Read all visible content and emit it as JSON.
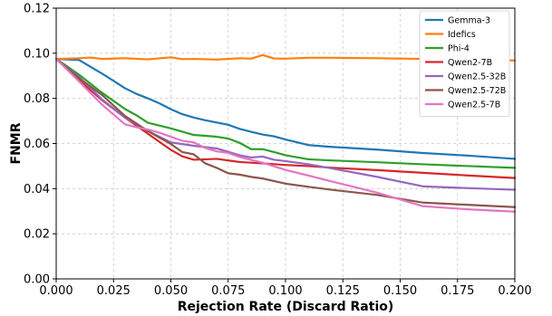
{
  "chart_data": {
    "type": "line",
    "title": "",
    "xlabel": "Rejection Rate (Discard Ratio)",
    "ylabel": "FNMR",
    "xlim": [
      0.0,
      0.2
    ],
    "ylim": [
      0.0,
      0.12
    ],
    "xticks": [
      "0.000",
      "0.025",
      "0.050",
      "0.075",
      "0.100",
      "0.125",
      "0.150",
      "0.175",
      "0.200"
    ],
    "yticks": [
      "0.00",
      "0.02",
      "0.04",
      "0.06",
      "0.08",
      "0.10",
      "0.12"
    ],
    "grid": true,
    "legend_position": "top-right",
    "series": [
      {
        "name": "Gemma-3",
        "color": "#1f77b4",
        "x": [
          0.0,
          0.01,
          0.02,
          0.03,
          0.035,
          0.04,
          0.045,
          0.05,
          0.055,
          0.06,
          0.065,
          0.07,
          0.075,
          0.08,
          0.085,
          0.09,
          0.095,
          0.1,
          0.11,
          0.12,
          0.14,
          0.16,
          0.18,
          0.2
        ],
        "y": [
          0.0975,
          0.097,
          0.091,
          0.0845,
          0.082,
          0.08,
          0.0778,
          0.0752,
          0.073,
          0.0715,
          0.0703,
          0.0693,
          0.0683,
          0.0665,
          0.0652,
          0.064,
          0.0632,
          0.0618,
          0.0593,
          0.0585,
          0.0573,
          0.0558,
          0.0546,
          0.0532
        ]
      },
      {
        "name": "Idefics",
        "color": "#ff7f0e",
        "x": [
          0.0,
          0.01,
          0.015,
          0.02,
          0.03,
          0.04,
          0.05,
          0.055,
          0.06,
          0.07,
          0.08,
          0.085,
          0.09,
          0.095,
          0.1,
          0.11,
          0.12,
          0.14,
          0.16,
          0.18,
          0.2
        ],
        "y": [
          0.0975,
          0.0978,
          0.0981,
          0.0975,
          0.0978,
          0.0973,
          0.0982,
          0.0974,
          0.0975,
          0.0972,
          0.0978,
          0.0976,
          0.0992,
          0.0977,
          0.0976,
          0.098,
          0.098,
          0.0978,
          0.0975,
          0.0972,
          0.0968
        ]
      },
      {
        "name": "Phi-4",
        "color": "#2ca02c",
        "x": [
          0.0,
          0.01,
          0.02,
          0.03,
          0.035,
          0.04,
          0.05,
          0.06,
          0.07,
          0.075,
          0.08,
          0.085,
          0.09,
          0.095,
          0.1,
          0.11,
          0.12,
          0.14,
          0.16,
          0.18,
          0.2
        ],
        "y": [
          0.0975,
          0.0905,
          0.0825,
          0.0753,
          0.0725,
          0.0692,
          0.0667,
          0.0638,
          0.063,
          0.0622,
          0.0603,
          0.0575,
          0.0575,
          0.0562,
          0.0548,
          0.053,
          0.0525,
          0.0517,
          0.0508,
          0.05,
          0.0492
        ]
      },
      {
        "name": "Qwen2-7B",
        "color": "#d62728",
        "x": [
          0.0,
          0.01,
          0.02,
          0.03,
          0.04,
          0.05,
          0.055,
          0.06,
          0.065,
          0.07,
          0.08,
          0.09,
          0.1,
          0.11,
          0.12,
          0.14,
          0.16,
          0.18,
          0.2
        ],
        "y": [
          0.0975,
          0.088,
          0.0792,
          0.0715,
          0.0643,
          0.0572,
          0.0543,
          0.0528,
          0.053,
          0.0532,
          0.0518,
          0.0512,
          0.0505,
          0.05,
          0.0493,
          0.0482,
          0.047,
          0.0458,
          0.0447
        ]
      },
      {
        "name": "Qwen2.5-32B",
        "color": "#9467bd",
        "x": [
          0.0,
          0.01,
          0.02,
          0.03,
          0.04,
          0.05,
          0.06,
          0.07,
          0.08,
          0.085,
          0.09,
          0.095,
          0.1,
          0.11,
          0.12,
          0.14,
          0.16,
          0.18,
          0.2
        ],
        "y": [
          0.0975,
          0.0895,
          0.0795,
          0.0715,
          0.0655,
          0.0605,
          0.059,
          0.0578,
          0.0548,
          0.0538,
          0.0542,
          0.0528,
          0.0522,
          0.0508,
          0.049,
          0.0452,
          0.041,
          0.0402,
          0.0395
        ]
      },
      {
        "name": "Qwen2.5-72B",
        "color": "#8c564b",
        "x": [
          0.0,
          0.01,
          0.02,
          0.03,
          0.04,
          0.05,
          0.055,
          0.06,
          0.065,
          0.07,
          0.075,
          0.08,
          0.085,
          0.09,
          0.1,
          0.11,
          0.12,
          0.14,
          0.16,
          0.18,
          0.2
        ],
        "y": [
          0.0975,
          0.089,
          0.0815,
          0.0722,
          0.0655,
          0.0598,
          0.0562,
          0.0552,
          0.0512,
          0.0492,
          0.0468,
          0.0462,
          0.0452,
          0.0445,
          0.0422,
          0.0408,
          0.0395,
          0.0372,
          0.0338,
          0.0328,
          0.0318
        ]
      },
      {
        "name": "Qwen2.5-7B",
        "color": "#e377c2",
        "x": [
          0.0,
          0.01,
          0.02,
          0.03,
          0.035,
          0.04,
          0.045,
          0.05,
          0.055,
          0.06,
          0.065,
          0.07,
          0.075,
          0.08,
          0.09,
          0.1,
          0.11,
          0.12,
          0.14,
          0.16,
          0.18,
          0.2
        ],
        "y": [
          0.0975,
          0.0875,
          0.0772,
          0.0685,
          0.0672,
          0.0662,
          0.0648,
          0.063,
          0.0612,
          0.0605,
          0.058,
          0.0565,
          0.0558,
          0.054,
          0.0515,
          0.0483,
          0.0458,
          0.0432,
          0.0382,
          0.0322,
          0.0308,
          0.0298
        ]
      }
    ]
  }
}
